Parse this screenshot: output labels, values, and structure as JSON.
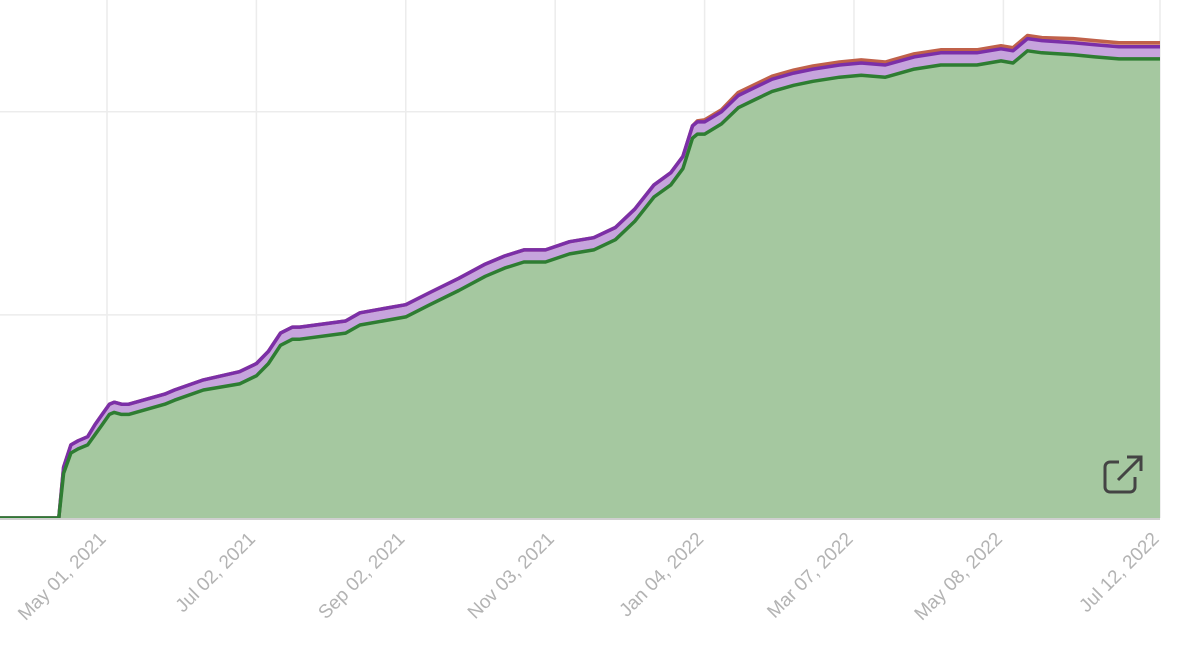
{
  "chart_data": {
    "type": "area",
    "stacked": true,
    "grid": true,
    "x_axis": {
      "type": "date",
      "range": [
        "2021-03-10",
        "2022-07-12"
      ],
      "tick_labels": [
        {
          "date": "2021-05-01",
          "label": "May 01, 2021"
        },
        {
          "date": "2021-07-02",
          "label": "Jul 02, 2021"
        },
        {
          "date": "2021-09-02",
          "label": "Sep 02, 2021"
        },
        {
          "date": "2021-11-03",
          "label": "Nov 03, 2021"
        },
        {
          "date": "2022-01-04",
          "label": "Jan 04, 2022"
        },
        {
          "date": "2022-03-07",
          "label": "Mar 07, 2022"
        },
        {
          "date": "2022-05-08",
          "label": "May 08, 2022"
        },
        {
          "date": "2022-07-12",
          "label": "Jul 12, 2022"
        }
      ]
    },
    "y_axis": {
      "range": [
        0,
        2.55
      ],
      "gridlines": [
        1,
        2
      ],
      "tick_labels_visible": false
    },
    "x": [
      "2021-03-10",
      "2021-04-11",
      "2021-04-13",
      "2021-04-16",
      "2021-04-19",
      "2021-04-23",
      "2021-04-26",
      "2021-04-29",
      "2021-05-02",
      "2021-05-04",
      "2021-05-07",
      "2021-05-10",
      "2021-05-25",
      "2021-05-29",
      "2021-06-10",
      "2021-06-25",
      "2021-07-02",
      "2021-07-07",
      "2021-07-12",
      "2021-07-17",
      "2021-07-20",
      "2021-08-08",
      "2021-08-14",
      "2021-09-02",
      "2021-09-12",
      "2021-09-24",
      "2021-10-05",
      "2021-10-13",
      "2021-10-21",
      "2021-10-30",
      "2021-11-09",
      "2021-11-19",
      "2021-11-28",
      "2021-12-06",
      "2021-12-14",
      "2021-12-21",
      "2021-12-26",
      "2021-12-30",
      "2022-01-01",
      "2022-01-04",
      "2022-01-11",
      "2022-01-18",
      "2022-01-25",
      "2022-02-01",
      "2022-02-10",
      "2022-02-18",
      "2022-03-01",
      "2022-03-10",
      "2022-03-20",
      "2022-04-01",
      "2022-04-12",
      "2022-04-27",
      "2022-05-07",
      "2022-05-12",
      "2022-05-18",
      "2022-05-24",
      "2022-06-06",
      "2022-06-15",
      "2022-06-25",
      "2022-07-01",
      "2022-07-12"
    ],
    "series": [
      {
        "color": "#2e7d32",
        "fill": "#a5c8a0",
        "values": [
          0,
          0,
          0.22,
          0.32,
          0.34,
          0.36,
          0.41,
          0.46,
          0.51,
          0.52,
          0.51,
          0.51,
          0.56,
          0.58,
          0.63,
          0.66,
          0.7,
          0.76,
          0.85,
          0.88,
          0.88,
          0.91,
          0.95,
          0.99,
          1.05,
          1.12,
          1.19,
          1.23,
          1.26,
          1.26,
          1.3,
          1.32,
          1.37,
          1.46,
          1.58,
          1.64,
          1.72,
          1.87,
          1.89,
          1.89,
          1.94,
          2.02,
          2.06,
          2.1,
          2.13,
          2.15,
          2.17,
          2.18,
          2.17,
          2.21,
          2.23,
          2.23,
          2.25,
          2.24,
          2.3,
          2.29,
          2.28,
          2.27,
          2.26,
          2.26,
          2.26
        ]
      },
      {
        "color": "#7b2fa8",
        "fill": "#c6a4dd",
        "values": [
          0,
          0,
          0.03,
          0.04,
          0.04,
          0.04,
          0.05,
          0.05,
          0.05,
          0.05,
          0.05,
          0.05,
          0.05,
          0.05,
          0.05,
          0.06,
          0.06,
          0.06,
          0.06,
          0.06,
          0.06,
          0.06,
          0.06,
          0.06,
          0.06,
          0.06,
          0.06,
          0.06,
          0.06,
          0.06,
          0.06,
          0.06,
          0.06,
          0.06,
          0.06,
          0.06,
          0.06,
          0.06,
          0.06,
          0.06,
          0.06,
          0.06,
          0.06,
          0.06,
          0.06,
          0.06,
          0.06,
          0.06,
          0.06,
          0.06,
          0.06,
          0.06,
          0.06,
          0.06,
          0.06,
          0.06,
          0.06,
          0.06,
          0.06,
          0.06,
          0.06
        ]
      },
      {
        "color": "#c0614a",
        "fill": "#e6b0a3",
        "values": [
          0,
          0,
          0,
          0,
          0,
          0,
          0,
          0,
          0,
          0,
          0,
          0,
          0,
          0,
          0,
          0,
          0,
          0,
          0,
          0,
          0,
          0,
          0,
          0,
          0,
          0,
          0,
          0,
          0,
          0,
          0,
          0,
          0,
          0,
          0,
          0,
          0,
          0,
          0.005,
          0.01,
          0.01,
          0.015,
          0.015,
          0.015,
          0.015,
          0.015,
          0.015,
          0.015,
          0.015,
          0.015,
          0.015,
          0.015,
          0.015,
          0.015,
          0.015,
          0.015,
          0.02,
          0.02,
          0.02,
          0.02,
          0.02
        ]
      }
    ]
  },
  "open_icon": "external-link-icon"
}
